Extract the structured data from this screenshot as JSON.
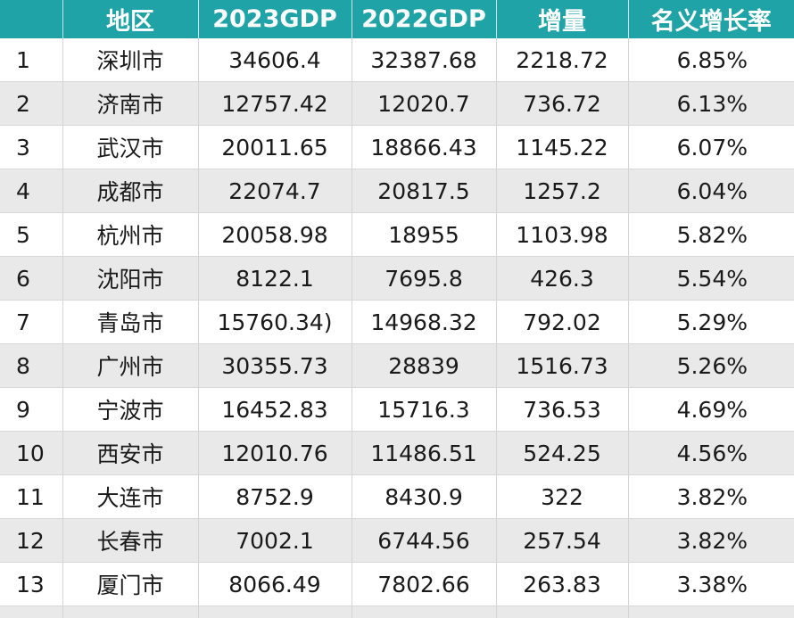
{
  "table": {
    "headers": [
      "",
      "地区",
      "2023GDP",
      "2022GDP",
      "增量",
      "名义增长率"
    ],
    "rows": [
      [
        "1",
        "深圳市",
        "34606.4",
        "32387.68",
        "2218.72",
        "6.85%"
      ],
      [
        "2",
        "济南市",
        "12757.42",
        "12020.7",
        "736.72",
        "6.13%"
      ],
      [
        "3",
        "武汉市",
        "20011.65",
        "18866.43",
        "1145.22",
        "6.07%"
      ],
      [
        "4",
        "成都市",
        "22074.7",
        "20817.5",
        "1257.2",
        "6.04%"
      ],
      [
        "5",
        "杭州市",
        "20058.98",
        "18955",
        "1103.98",
        "5.82%"
      ],
      [
        "6",
        "沈阳市",
        "8122.1",
        "7695.8",
        "426.3",
        "5.54%"
      ],
      [
        "7",
        "青岛市",
        "15760.34)",
        "14968.32",
        "792.02",
        "5.29%"
      ],
      [
        "8",
        "广州市",
        "30355.73",
        "28839",
        "1516.73",
        "5.26%"
      ],
      [
        "9",
        "宁波市",
        "16452.83",
        "15716.3",
        "736.53",
        "4.69%"
      ],
      [
        "10",
        "西安市",
        "12010.76",
        "11486.51",
        "524.25",
        "4.56%"
      ],
      [
        "11",
        "大连市",
        "8752.9",
        "8430.9",
        "322",
        "3.82%"
      ],
      [
        "12",
        "长春市",
        "7002.1",
        "6744.56",
        "257.54",
        "3.82%"
      ],
      [
        "13",
        "厦门市",
        "8066.49",
        "7802.66",
        "263.83",
        "3.38%"
      ]
    ]
  },
  "colors": {
    "header_bg": "#1fa3a6",
    "header_text": "#ffffff",
    "stripe": "#e9e9e9"
  }
}
